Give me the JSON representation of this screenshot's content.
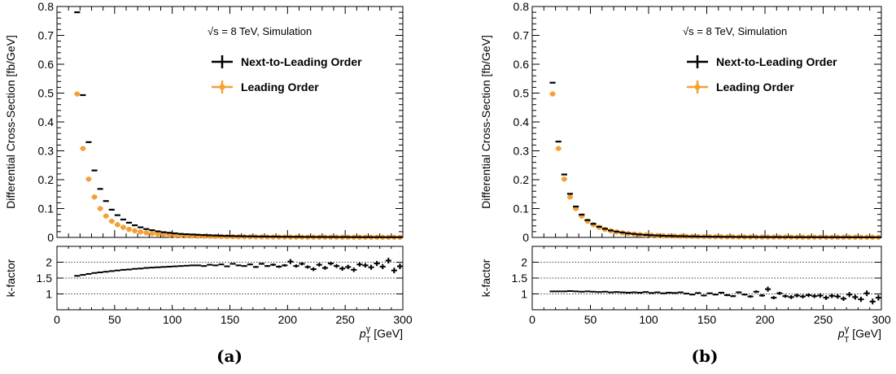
{
  "chart_data": [
    {
      "type": "scatter",
      "caption": "(a)",
      "annotation": "√s = 8 TeV, Simulation",
      "xlabel": "p_T^γ [GeV]",
      "xlabel_parts": {
        "p": "p",
        "sub": "T",
        "sup": "γ",
        "unit": " [GeV]"
      },
      "xlim": [
        0,
        300
      ],
      "xticks": [
        0,
        50,
        100,
        150,
        200,
        250,
        300
      ],
      "main": {
        "ylabel": "Differential Cross-Section [fb/GeV]",
        "ylim": [
          0,
          0.8
        ],
        "yticks": [
          "0",
          "0.1",
          "0.2",
          "0.3",
          "0.4",
          "0.5",
          "0.6",
          "0.7",
          "0.8"
        ],
        "legend": [
          {
            "name": "Next-to-Leading Order",
            "color": "#000000"
          },
          {
            "name": "Leading Order",
            "color": "#f5a035"
          }
        ],
        "series": [
          {
            "name": "Next-to-Leading Order",
            "x": [
              17.5,
              22.5,
              27.5,
              32.5,
              37.5,
              42.5,
              47.5,
              52.5,
              57.5,
              62.5,
              67.5,
              72.5,
              77.5,
              82.5,
              87.5,
              92.5,
              97.5,
              102.5,
              107.5,
              112.5,
              117.5,
              122.5,
              127.5,
              132.5,
              137.5,
              142.5,
              147.5,
              152.5,
              157.5,
              162.5,
              167.5,
              172.5,
              177.5,
              182.5,
              187.5,
              192.5,
              197.5,
              202.5,
              207.5,
              212.5,
              217.5,
              222.5,
              227.5,
              232.5,
              237.5,
              242.5,
              247.5,
              252.5,
              257.5,
              262.5,
              267.5,
              272.5,
              277.5,
              282.5,
              287.5,
              292.5,
              297.5
            ],
            "y": [
              0.78,
              0.493,
              0.33,
              0.232,
              0.168,
              0.126,
              0.096,
              0.077,
              0.062,
              0.051,
              0.042,
              0.035,
              0.029,
              0.025,
              0.021,
              0.018,
              0.016,
              0.014,
              0.012,
              0.011,
              0.01,
              0.009,
              0.008,
              0.0072,
              0.0065,
              0.0058,
              0.0052,
              0.0047,
              0.0043,
              0.0039,
              0.0036,
              0.0033,
              0.003,
              0.0028,
              0.0026,
              0.0024,
              0.0022,
              0.0021,
              0.0019,
              0.0018,
              0.0017,
              0.0016,
              0.0015,
              0.0014,
              0.0013,
              0.0012,
              0.0012,
              0.0011,
              0.001,
              0.001,
              0.0009,
              0.0009,
              0.0008,
              0.0008,
              0.0007,
              0.0007,
              0.0007
            ]
          },
          {
            "name": "Leading Order",
            "x": [
              17.5,
              22.5,
              27.5,
              32.5,
              37.5,
              42.5,
              47.5,
              52.5,
              57.5,
              62.5,
              67.5,
              72.5,
              77.5,
              82.5,
              87.5,
              92.5,
              97.5,
              102.5,
              107.5,
              112.5,
              117.5,
              122.5,
              127.5,
              132.5,
              137.5,
              142.5,
              147.5,
              152.5,
              157.5,
              162.5,
              167.5,
              172.5,
              177.5,
              182.5,
              187.5,
              192.5,
              197.5,
              202.5,
              207.5,
              212.5,
              217.5,
              222.5,
              227.5,
              232.5,
              237.5,
              242.5,
              247.5,
              252.5,
              257.5,
              262.5,
              267.5,
              272.5,
              277.5,
              282.5,
              287.5,
              292.5,
              297.5
            ],
            "y": [
              0.497,
              0.308,
              0.202,
              0.14,
              0.1,
              0.074,
              0.056,
              0.044,
              0.035,
              0.028,
              0.023,
              0.019,
              0.016,
              0.0135,
              0.0115,
              0.0098,
              0.0084,
              0.0073,
              0.0064,
              0.0056,
              0.005,
              0.0045,
              0.004,
              0.0036,
              0.0033,
              0.003,
              0.0027,
              0.0025,
              0.0023,
              0.0021,
              0.0019,
              0.0018,
              0.0016,
              0.0015,
              0.0014,
              0.0013,
              0.0012,
              0.0011,
              0.001,
              0.001,
              0.0009,
              0.0009,
              0.0008,
              0.0008,
              0.0007,
              0.0007,
              0.0007,
              0.0006,
              0.0006,
              0.0005,
              0.0005,
              0.0005,
              0.0005,
              0.0004,
              0.0004,
              0.0004,
              0.0004
            ]
          }
        ]
      },
      "ratio": {
        "ylabel": "k-factor",
        "ylim": [
          0.5,
          2.5
        ],
        "yticks": [
          "1",
          "1.5",
          "2"
        ],
        "reference_lines": [
          1,
          1.5,
          2
        ],
        "x": [
          17.5,
          22.5,
          27.5,
          32.5,
          37.5,
          42.5,
          47.5,
          52.5,
          57.5,
          62.5,
          67.5,
          72.5,
          77.5,
          82.5,
          87.5,
          92.5,
          97.5,
          102.5,
          107.5,
          112.5,
          117.5,
          122.5,
          127.5,
          132.5,
          137.5,
          142.5,
          147.5,
          152.5,
          157.5,
          162.5,
          167.5,
          172.5,
          177.5,
          182.5,
          187.5,
          192.5,
          197.5,
          202.5,
          207.5,
          212.5,
          217.5,
          222.5,
          227.5,
          232.5,
          237.5,
          242.5,
          247.5,
          252.5,
          257.5,
          262.5,
          267.5,
          272.5,
          277.5,
          282.5,
          287.5,
          292.5,
          297.5
        ],
        "y": [
          1.57,
          1.6,
          1.63,
          1.66,
          1.68,
          1.7,
          1.72,
          1.74,
          1.76,
          1.77,
          1.79,
          1.8,
          1.82,
          1.83,
          1.84,
          1.85,
          1.86,
          1.87,
          1.88,
          1.89,
          1.9,
          1.9,
          1.88,
          1.92,
          1.9,
          1.93,
          1.87,
          1.95,
          1.9,
          1.88,
          1.93,
          1.85,
          1.95,
          1.88,
          1.92,
          1.86,
          1.9,
          2.02,
          1.88,
          1.95,
          1.85,
          1.78,
          1.92,
          1.82,
          1.96,
          1.88,
          1.8,
          1.85,
          1.76,
          1.93,
          1.9,
          1.84,
          1.96,
          1.86,
          2.05,
          1.74,
          1.87
        ],
        "yerr": [
          0.01,
          0.01,
          0.01,
          0.01,
          0.01,
          0.01,
          0.01,
          0.01,
          0.01,
          0.01,
          0.01,
          0.01,
          0.01,
          0.01,
          0.01,
          0.01,
          0.01,
          0.015,
          0.015,
          0.015,
          0.015,
          0.02,
          0.02,
          0.02,
          0.02,
          0.02,
          0.025,
          0.025,
          0.025,
          0.025,
          0.03,
          0.03,
          0.03,
          0.03,
          0.04,
          0.04,
          0.04,
          0.08,
          0.05,
          0.05,
          0.05,
          0.06,
          0.06,
          0.06,
          0.06,
          0.06,
          0.07,
          0.07,
          0.07,
          0.07,
          0.07,
          0.08,
          0.08,
          0.08,
          0.09,
          0.09,
          0.09
        ]
      }
    },
    {
      "type": "scatter",
      "caption": "(b)",
      "annotation": "√s = 8 TeV, Simulation",
      "xlabel": "p_T^γ [GeV]",
      "xlabel_parts": {
        "p": "p",
        "sub": "T",
        "sup": "γ",
        "unit": " [GeV]"
      },
      "xlim": [
        0,
        300
      ],
      "xticks": [
        0,
        50,
        100,
        150,
        200,
        250,
        300
      ],
      "main": {
        "ylabel": "Differential Cross-Section [fb/GeV]",
        "ylim": [
          0,
          0.8
        ],
        "yticks": [
          "0",
          "0.1",
          "0.2",
          "0.3",
          "0.4",
          "0.5",
          "0.6",
          "0.7",
          "0.8"
        ],
        "legend": [
          {
            "name": "Next-to-Leading Order",
            "color": "#000000"
          },
          {
            "name": "Leading Order",
            "color": "#f5a035"
          }
        ],
        "series": [
          {
            "name": "Next-to-Leading Order",
            "x": [
              17.5,
              22.5,
              27.5,
              32.5,
              37.5,
              42.5,
              47.5,
              52.5,
              57.5,
              62.5,
              67.5,
              72.5,
              77.5,
              82.5,
              87.5,
              92.5,
              97.5,
              102.5,
              107.5,
              112.5,
              117.5,
              122.5,
              127.5,
              132.5,
              137.5,
              142.5,
              147.5,
              152.5,
              157.5,
              162.5,
              167.5,
              172.5,
              177.5,
              182.5,
              187.5,
              192.5,
              197.5,
              202.5,
              207.5,
              212.5,
              217.5,
              222.5,
              227.5,
              232.5,
              237.5,
              242.5,
              247.5,
              252.5,
              257.5,
              262.5,
              267.5,
              272.5,
              277.5,
              282.5,
              287.5,
              292.5,
              297.5
            ],
            "y": [
              0.536,
              0.332,
              0.218,
              0.151,
              0.107,
              0.079,
              0.06,
              0.047,
              0.037,
              0.03,
              0.024,
              0.02,
              0.017,
              0.014,
              0.012,
              0.0102,
              0.0087,
              0.0076,
              0.0066,
              0.0058,
              0.0052,
              0.0046,
              0.0041,
              0.0037,
              0.0033,
              0.003,
              0.0027,
              0.0025,
              0.0023,
              0.0021,
              0.0019,
              0.0018,
              0.0016,
              0.0015,
              0.0014,
              0.0013,
              0.0012,
              0.0011,
              0.001,
              0.001,
              0.0009,
              0.0009,
              0.0008,
              0.0008,
              0.0007,
              0.0007,
              0.0007,
              0.0006,
              0.0006,
              0.0005,
              0.0005,
              0.0005,
              0.0005,
              0.0004,
              0.0004,
              0.0004,
              0.0004
            ]
          },
          {
            "name": "Leading Order",
            "x": [
              17.5,
              22.5,
              27.5,
              32.5,
              37.5,
              42.5,
              47.5,
              52.5,
              57.5,
              62.5,
              67.5,
              72.5,
              77.5,
              82.5,
              87.5,
              92.5,
              97.5,
              102.5,
              107.5,
              112.5,
              117.5,
              122.5,
              127.5,
              132.5,
              137.5,
              142.5,
              147.5,
              152.5,
              157.5,
              162.5,
              167.5,
              172.5,
              177.5,
              182.5,
              187.5,
              192.5,
              197.5,
              202.5,
              207.5,
              212.5,
              217.5,
              222.5,
              227.5,
              232.5,
              237.5,
              242.5,
              247.5,
              252.5,
              257.5,
              262.5,
              267.5,
              272.5,
              277.5,
              282.5,
              287.5,
              292.5,
              297.5
            ],
            "y": [
              0.497,
              0.308,
              0.202,
              0.14,
              0.1,
              0.074,
              0.056,
              0.044,
              0.035,
              0.028,
              0.023,
              0.019,
              0.016,
              0.0135,
              0.0115,
              0.0098,
              0.0084,
              0.0073,
              0.0064,
              0.0056,
              0.005,
              0.0045,
              0.004,
              0.0036,
              0.0033,
              0.003,
              0.0027,
              0.0025,
              0.0023,
              0.0021,
              0.0019,
              0.0018,
              0.0016,
              0.0015,
              0.0014,
              0.0013,
              0.0012,
              0.0011,
              0.001,
              0.001,
              0.0009,
              0.0009,
              0.0008,
              0.0008,
              0.0007,
              0.0007,
              0.0007,
              0.0006,
              0.0006,
              0.0005,
              0.0005,
              0.0005,
              0.0005,
              0.0004,
              0.0004,
              0.0004,
              0.0004
            ]
          }
        ]
      },
      "ratio": {
        "ylabel": "k-factor",
        "ylim": [
          0.5,
          2.5
        ],
        "yticks": [
          "1",
          "1.5",
          "2"
        ],
        "reference_lines": [
          1,
          1.5,
          2
        ],
        "x": [
          17.5,
          22.5,
          27.5,
          32.5,
          37.5,
          42.5,
          47.5,
          52.5,
          57.5,
          62.5,
          67.5,
          72.5,
          77.5,
          82.5,
          87.5,
          92.5,
          97.5,
          102.5,
          107.5,
          112.5,
          117.5,
          122.5,
          127.5,
          132.5,
          137.5,
          142.5,
          147.5,
          152.5,
          157.5,
          162.5,
          167.5,
          172.5,
          177.5,
          182.5,
          187.5,
          192.5,
          197.5,
          202.5,
          207.5,
          212.5,
          217.5,
          222.5,
          227.5,
          232.5,
          237.5,
          242.5,
          247.5,
          252.5,
          257.5,
          262.5,
          267.5,
          272.5,
          277.5,
          282.5,
          287.5,
          292.5,
          297.5
        ],
        "y": [
          1.08,
          1.08,
          1.08,
          1.09,
          1.08,
          1.07,
          1.08,
          1.07,
          1.06,
          1.07,
          1.05,
          1.06,
          1.05,
          1.04,
          1.05,
          1.04,
          1.06,
          1.03,
          1.05,
          1.02,
          1.04,
          1.03,
          1.05,
          1.01,
          0.98,
          1.03,
          0.95,
          1.02,
          0.98,
          1.04,
          0.96,
          0.93,
          1.05,
          0.98,
          0.92,
          1.07,
          0.95,
          1.15,
          0.88,
          1.02,
          0.93,
          0.9,
          0.95,
          0.92,
          0.96,
          0.93,
          0.95,
          0.88,
          0.94,
          0.92,
          0.85,
          0.98,
          0.9,
          0.83,
          1.02,
          0.76,
          0.88
        ],
        "yerr": [
          0.01,
          0.01,
          0.01,
          0.01,
          0.01,
          0.01,
          0.01,
          0.01,
          0.01,
          0.01,
          0.01,
          0.01,
          0.01,
          0.01,
          0.01,
          0.01,
          0.01,
          0.015,
          0.015,
          0.015,
          0.015,
          0.02,
          0.02,
          0.02,
          0.02,
          0.02,
          0.025,
          0.025,
          0.025,
          0.025,
          0.03,
          0.03,
          0.03,
          0.03,
          0.04,
          0.04,
          0.04,
          0.08,
          0.05,
          0.05,
          0.05,
          0.06,
          0.06,
          0.06,
          0.06,
          0.06,
          0.07,
          0.07,
          0.07,
          0.07,
          0.07,
          0.08,
          0.08,
          0.08,
          0.09,
          0.09,
          0.09
        ]
      }
    }
  ]
}
